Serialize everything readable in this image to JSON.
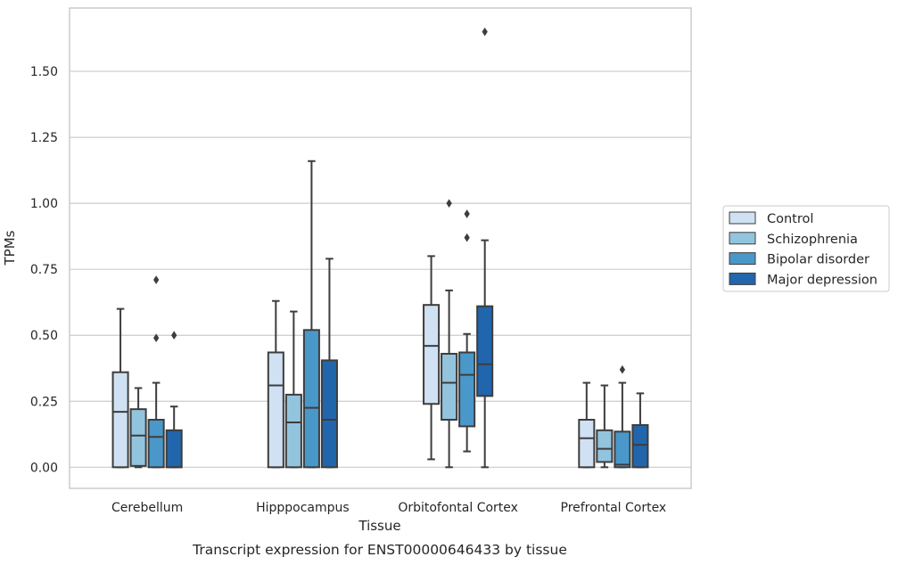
{
  "chart_data": {
    "type": "box",
    "caption": "Transcript expression for ENST00000646433 by tissue",
    "xlabel": "Tissue",
    "ylabel": "TPMs",
    "ylim": [
      -0.08,
      1.74
    ],
    "yticks": [
      0.0,
      0.25,
      0.5,
      0.75,
      1.0,
      1.25,
      1.5
    ],
    "ytick_labels": [
      "0.00",
      "0.25",
      "0.50",
      "0.75",
      "1.00",
      "1.25",
      "1.50"
    ],
    "grid": true,
    "legend_position": "right",
    "categories": [
      "Cerebellum",
      "Hipppocampus",
      "Orbitofontal Cortex",
      "Prefrontal Cortex"
    ],
    "series": [
      {
        "name": "Control",
        "color": "#cfe1f2",
        "boxes": [
          {
            "whislo": 0.0,
            "q1": 0.0,
            "med": 0.21,
            "q3": 0.36,
            "whishi": 0.6,
            "fliers": []
          },
          {
            "whislo": 0.0,
            "q1": 0.0,
            "med": 0.31,
            "q3": 0.435,
            "whishi": 0.63,
            "fliers": []
          },
          {
            "whislo": 0.03,
            "q1": 0.24,
            "med": 0.46,
            "q3": 0.615,
            "whishi": 0.8,
            "fliers": []
          },
          {
            "whislo": 0.0,
            "q1": 0.0,
            "med": 0.11,
            "q3": 0.18,
            "whishi": 0.32,
            "fliers": []
          }
        ]
      },
      {
        "name": "Schizophrenia",
        "color": "#93c4de",
        "boxes": [
          {
            "whislo": 0.0,
            "q1": 0.005,
            "med": 0.12,
            "q3": 0.22,
            "whishi": 0.3,
            "fliers": []
          },
          {
            "whislo": 0.0,
            "q1": 0.0,
            "med": 0.17,
            "q3": 0.275,
            "whishi": 0.59,
            "fliers": []
          },
          {
            "whislo": 0.0,
            "q1": 0.18,
            "med": 0.32,
            "q3": 0.43,
            "whishi": 0.67,
            "fliers": [
              1.0
            ]
          },
          {
            "whislo": 0.0,
            "q1": 0.02,
            "med": 0.07,
            "q3": 0.14,
            "whishi": 0.31,
            "fliers": []
          }
        ]
      },
      {
        "name": "Bipolar disorder",
        "color": "#4a98c9",
        "boxes": [
          {
            "whislo": 0.0,
            "q1": 0.0,
            "med": 0.115,
            "q3": 0.18,
            "whishi": 0.32,
            "fliers": [
              0.49,
              0.71
            ]
          },
          {
            "whislo": 0.0,
            "q1": 0.0,
            "med": 0.225,
            "q3": 0.52,
            "whishi": 1.16,
            "fliers": []
          },
          {
            "whislo": 0.06,
            "q1": 0.155,
            "med": 0.35,
            "q3": 0.435,
            "whishi": 0.505,
            "fliers": [
              0.87,
              0.96
            ]
          },
          {
            "whislo": 0.0,
            "q1": 0.0,
            "med": 0.01,
            "q3": 0.135,
            "whishi": 0.32,
            "fliers": [
              0.37
            ]
          }
        ]
      },
      {
        "name": "Major depression",
        "color": "#2166ac",
        "boxes": [
          {
            "whislo": 0.0,
            "q1": 0.0,
            "med": 0.0,
            "q3": 0.14,
            "whishi": 0.23,
            "fliers": [
              0.5
            ]
          },
          {
            "whislo": 0.0,
            "q1": 0.0,
            "med": 0.18,
            "q3": 0.405,
            "whishi": 0.79,
            "fliers": []
          },
          {
            "whislo": 0.0,
            "q1": 0.27,
            "med": 0.39,
            "q3": 0.61,
            "whishi": 0.86,
            "fliers": [
              1.65
            ]
          },
          {
            "whislo": 0.0,
            "q1": 0.0,
            "med": 0.085,
            "q3": 0.16,
            "whishi": 0.28,
            "fliers": []
          }
        ]
      }
    ]
  }
}
